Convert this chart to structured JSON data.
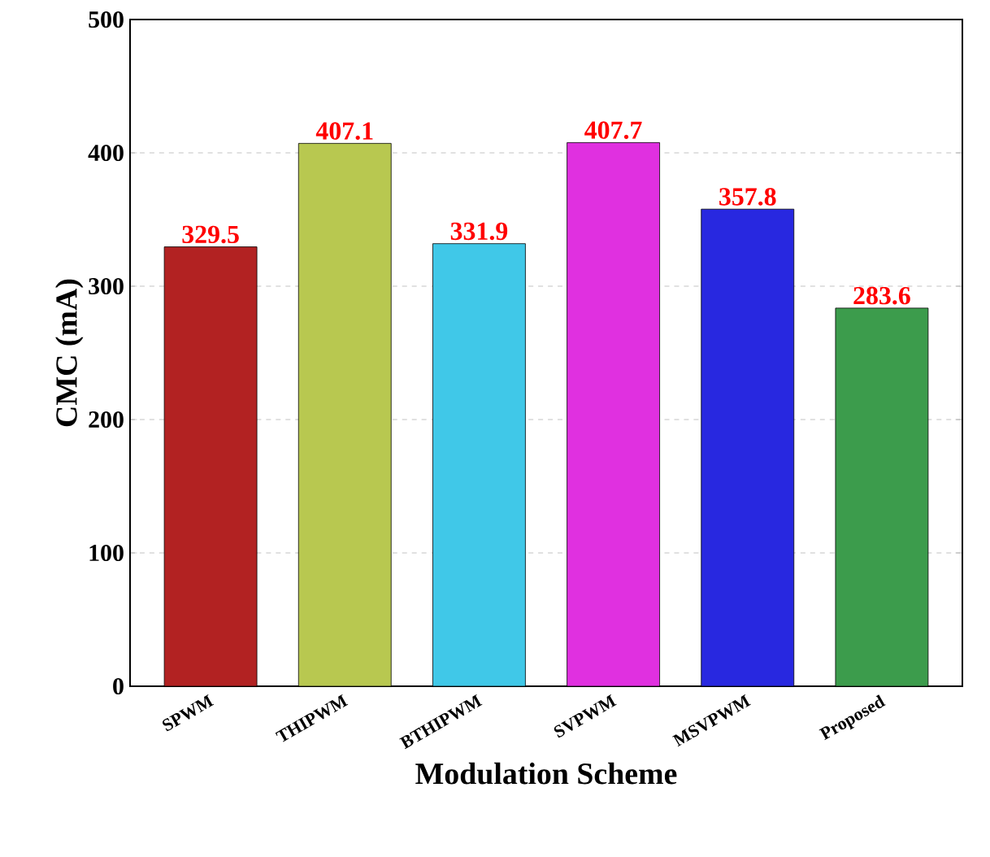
{
  "chart_data": {
    "type": "bar",
    "xlabel": "Modulation Scheme",
    "ylabel": "CMC (mA)",
    "categories": [
      "SPWM",
      "THIPWM",
      "BTHIPWM",
      "SVPWM",
      "MSVPWM",
      "Proposed"
    ],
    "values": [
      329.5,
      407.1,
      331.9,
      407.7,
      357.8,
      283.6
    ],
    "colors": [
      "#b22222",
      "#b8c850",
      "#40c8e8",
      "#e030e0",
      "#2828e0",
      "#3c9c4c"
    ],
    "ylim": [
      0,
      500
    ],
    "yticks": [
      0,
      100,
      200,
      300,
      400,
      500
    ],
    "grid": "y",
    "data_labels": true
  }
}
